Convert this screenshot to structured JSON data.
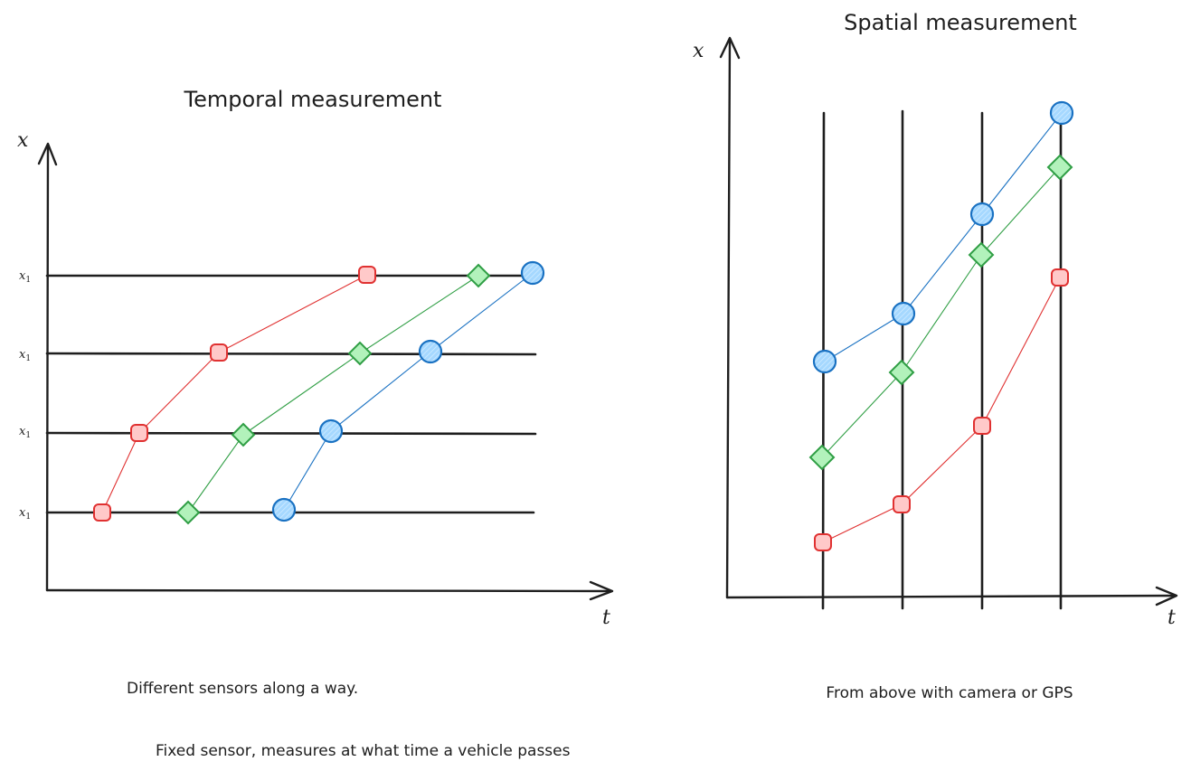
{
  "colors": {
    "ink": "#1e1e1e",
    "red": "#e03131",
    "green": "#2f9e44",
    "blue": "#1971c2",
    "red_fill": "#ffc9c9",
    "green_fill": "#b2f2bb",
    "blue_fill": "#a5d8ff"
  },
  "temporal": {
    "title": "Temporal measurement",
    "y_axis_label": "x",
    "x_axis_label": "t",
    "sensor_label": "x",
    "sensor_subscript": "1",
    "caption_1": "Different sensors along a way.",
    "caption_2": "Fixed sensor, measures at what time a vehicle passes"
  },
  "spatial": {
    "title": "Spatial measurement",
    "y_axis_label": "x",
    "x_axis_label": "t",
    "caption": "From above with camera or GPS"
  },
  "icons": {
    "square_marker": "red-rounded-square-icon",
    "diamond_marker": "green-diamond-icon",
    "circle_marker": "blue-circle-icon"
  }
}
